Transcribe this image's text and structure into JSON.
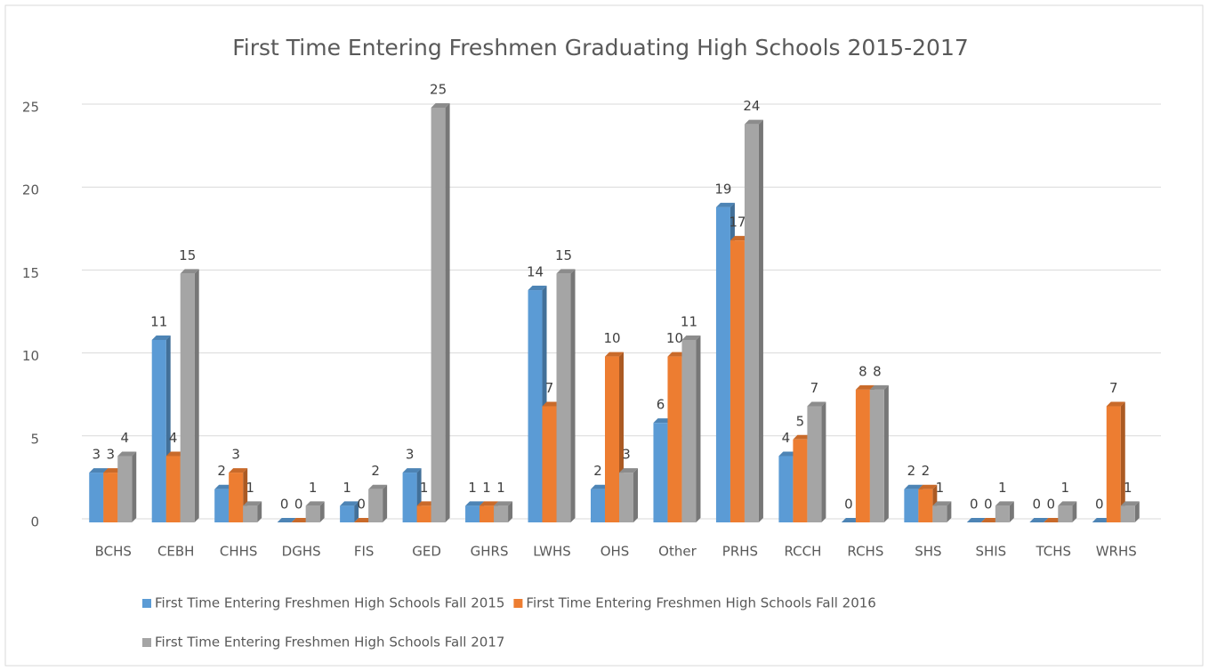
{
  "chart_data": {
    "type": "bar3d",
    "title": "First Time Entering Freshmen Graduating High Schools 2015-2017",
    "categories": [
      "BCHS",
      "CEBH",
      "CHHS",
      "DGHS",
      "FIS",
      "GED",
      "GHRS",
      "LWHS",
      "OHS",
      "Other",
      "PRHS",
      "RCCH",
      "RCHS",
      "SHS",
      "SHIS",
      "TCHS",
      "WRHS"
    ],
    "series": [
      {
        "name": "First Time Entering Freshmen High Schools Fall 2015",
        "color": "#5b9bd5",
        "values": [
          3,
          11,
          2,
          0,
          1,
          3,
          1,
          14,
          2,
          6,
          19,
          4,
          0,
          2,
          0,
          0,
          0
        ]
      },
      {
        "name": "First Time Entering Freshmen High Schools Fall 2016",
        "color": "#ed7d31",
        "values": [
          3,
          4,
          3,
          0,
          0,
          1,
          1,
          7,
          10,
          10,
          17,
          5,
          8,
          2,
          0,
          0,
          7
        ]
      },
      {
        "name": "First Time Entering Freshmen High Schools Fall 2017",
        "color": "#a5a5a5",
        "values": [
          4,
          15,
          1,
          1,
          2,
          25,
          1,
          15,
          3,
          11,
          24,
          7,
          8,
          1,
          1,
          1,
          1
        ]
      }
    ],
    "ylim": [
      0,
      25
    ],
    "yticks": [
      0,
      5,
      10,
      15,
      20,
      25
    ],
    "grid": true,
    "legend": "bottom"
  }
}
